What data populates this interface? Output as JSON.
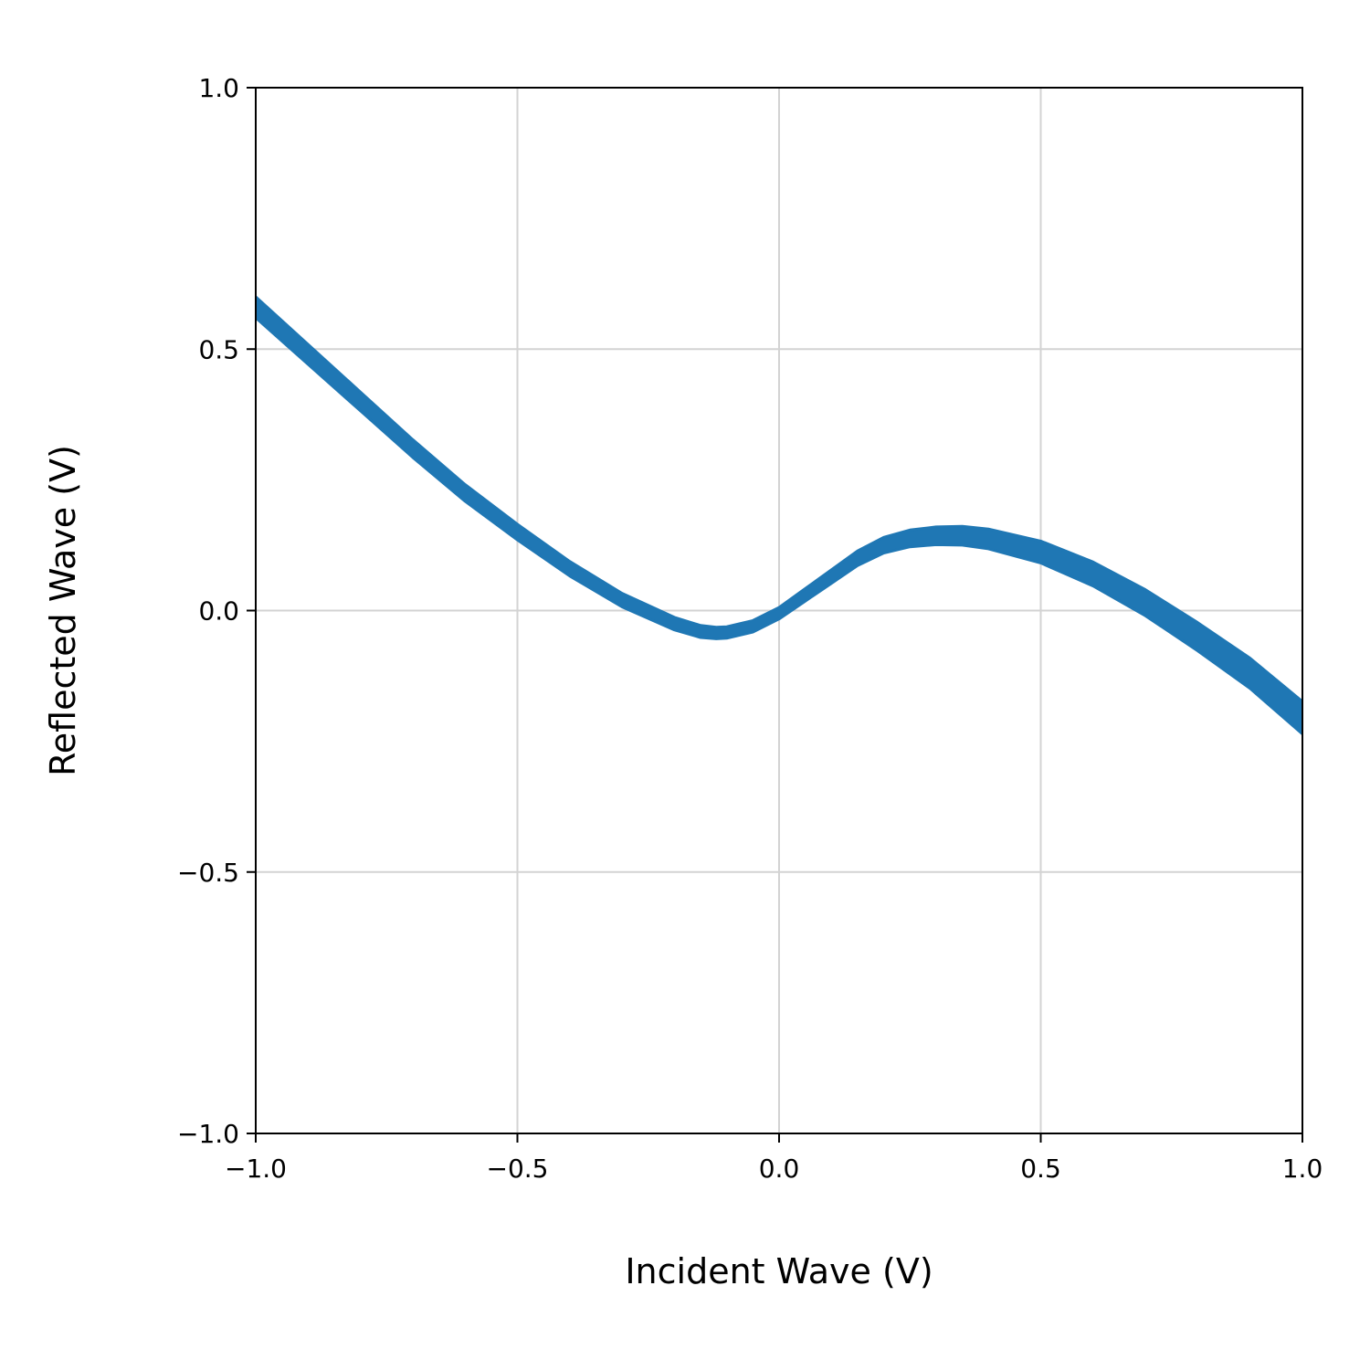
{
  "chart_data": {
    "type": "line",
    "title": "",
    "xlabel": "Incident Wave (V)",
    "ylabel": "Reflected Wave (V)",
    "xlim": [
      -1.0,
      1.0
    ],
    "ylim": [
      -1.0,
      1.0
    ],
    "grid": true,
    "xticks": [
      "−1.0",
      "−0.5",
      "0.0",
      "0.5",
      "1.0"
    ],
    "yticks": [
      "−1.0",
      "−0.5",
      "0.0",
      "0.5",
      "1.0"
    ],
    "xtick_values": [
      -1.0,
      -0.5,
      0.0,
      0.5,
      1.0
    ],
    "ytick_values": [
      -1.0,
      -0.5,
      0.0,
      0.5,
      1.0
    ],
    "color": "#1f77b4",
    "series": [
      {
        "x": [
          -1.0,
          -0.9,
          -0.8,
          -0.7,
          -0.6,
          -0.5,
          -0.4,
          -0.3,
          -0.2,
          -0.15,
          -0.12,
          -0.1,
          -0.05,
          0.0,
          0.05,
          0.1,
          0.15,
          0.2,
          0.25,
          0.3,
          0.35,
          0.4,
          0.5,
          0.6,
          0.7,
          0.8,
          0.9,
          1.0
        ],
        "y": [
          0.58,
          0.49,
          0.4,
          0.31,
          0.225,
          0.15,
          0.08,
          0.02,
          -0.025,
          -0.04,
          -0.043,
          -0.042,
          -0.03,
          -0.005,
          0.03,
          0.065,
          0.1,
          0.125,
          0.138,
          0.143,
          0.143,
          0.137,
          0.112,
          0.07,
          0.015,
          -0.05,
          -0.12,
          -0.205
        ],
        "band_width": [
          0.04,
          0.038,
          0.036,
          0.034,
          0.032,
          0.03,
          0.028,
          0.026,
          0.024,
          0.023,
          0.022,
          0.022,
          0.022,
          0.022,
          0.024,
          0.026,
          0.028,
          0.03,
          0.032,
          0.034,
          0.036,
          0.038,
          0.042,
          0.046,
          0.05,
          0.054,
          0.058,
          0.062
        ]
      }
    ]
  }
}
